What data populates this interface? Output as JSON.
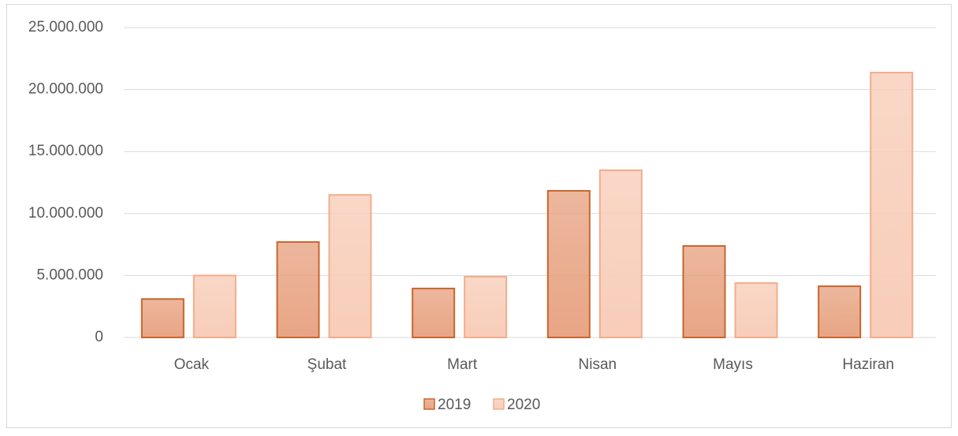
{
  "chart_data": {
    "type": "bar",
    "categories": [
      "Ocak",
      "Şubat",
      "Mart",
      "Nisan",
      "Mayıs",
      "Haziran"
    ],
    "series": [
      {
        "name": "2019",
        "color": "#e8a585",
        "edgecolor": "#c8662e",
        "values": [
          3100000,
          7700000,
          3950000,
          11830000,
          7380000,
          4130000
        ]
      },
      {
        "name": "2020",
        "color": "#f8cdb9",
        "edgecolor": "#f2ad8c",
        "values": [
          5000000,
          11500000,
          4900000,
          13490000,
          4390000,
          21370000
        ]
      }
    ],
    "ylim": [
      0,
      25000000
    ],
    "yticks": [
      0,
      {
        "value": 5000000,
        "label": "5.000.000"
      },
      {
        "value": 10000000,
        "label": "10.000.000"
      },
      {
        "value": 15000000,
        "label": "15.000.000"
      },
      {
        "value": 20000000,
        "label": "20.000.000"
      },
      {
        "value": 25000000,
        "label": "25.000.000"
      }
    ],
    "grid": true,
    "legend": "bottom"
  }
}
